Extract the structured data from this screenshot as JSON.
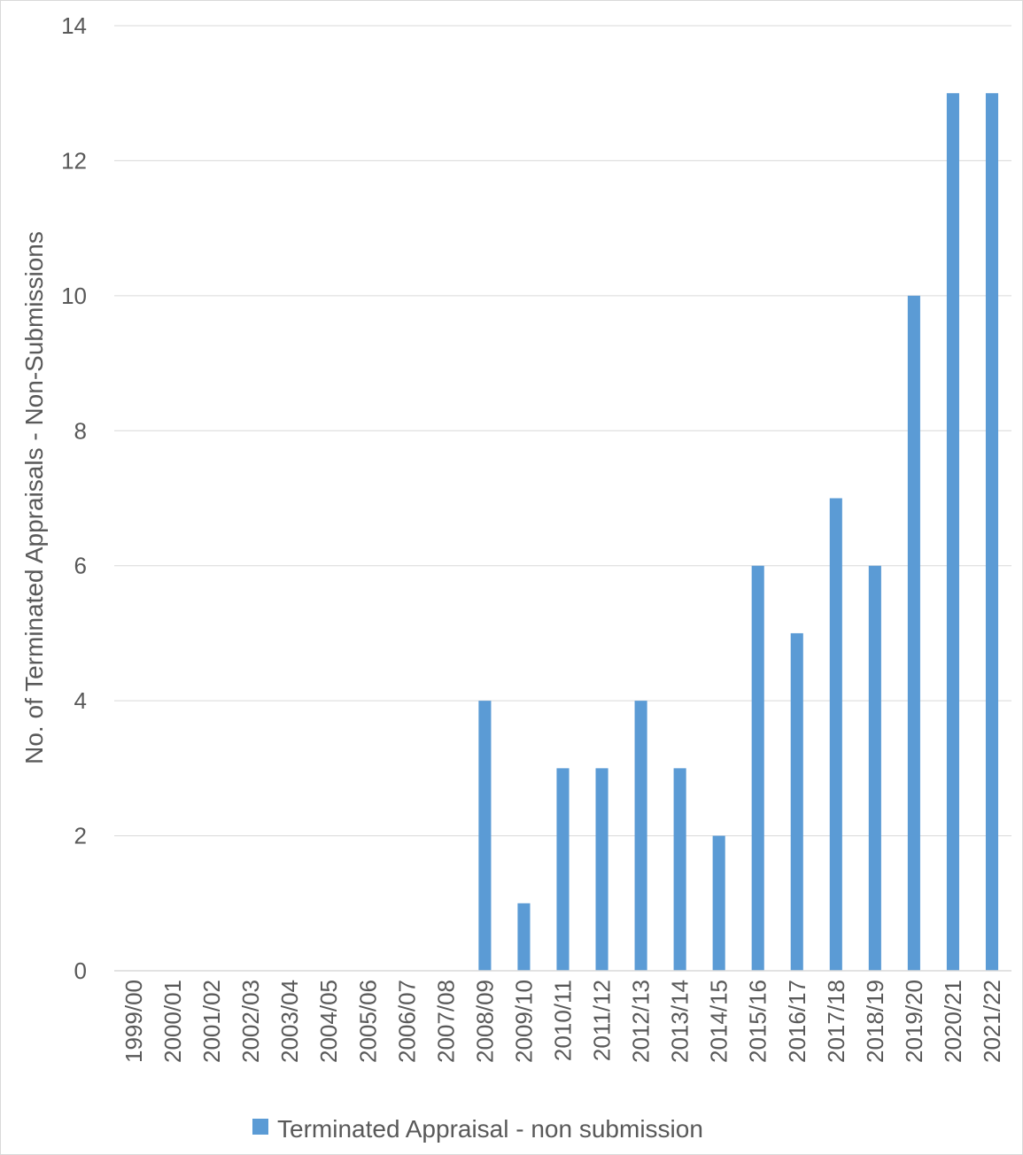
{
  "chart_data": {
    "type": "bar",
    "title": "",
    "xlabel": "",
    "ylabel": "No. of Terminated Appraisals - Non-Submissions",
    "ylim": [
      0,
      14
    ],
    "yticks": [
      0,
      2,
      4,
      6,
      8,
      10,
      12,
      14
    ],
    "grid": true,
    "legend_position": "bottom",
    "categories": [
      "1999/00",
      "2000/01",
      "2001/02",
      "2002/03",
      "2003/04",
      "2004/05",
      "2005/06",
      "2006/07",
      "2007/08",
      "2008/09",
      "2009/10",
      "2010/11",
      "2011/12",
      "2012/13",
      "2013/14",
      "2014/15",
      "2015/16",
      "2016/17",
      "2017/18",
      "2018/19",
      "2019/20",
      "2020/21",
      "2021/22"
    ],
    "series": [
      {
        "name": "Terminated Appraisal - non submission",
        "color": "#5b9bd5",
        "values": [
          0,
          0,
          0,
          0,
          0,
          0,
          0,
          0,
          0,
          4,
          1,
          3,
          3,
          4,
          3,
          2,
          6,
          5,
          7,
          6,
          10,
          13,
          13
        ]
      }
    ]
  }
}
